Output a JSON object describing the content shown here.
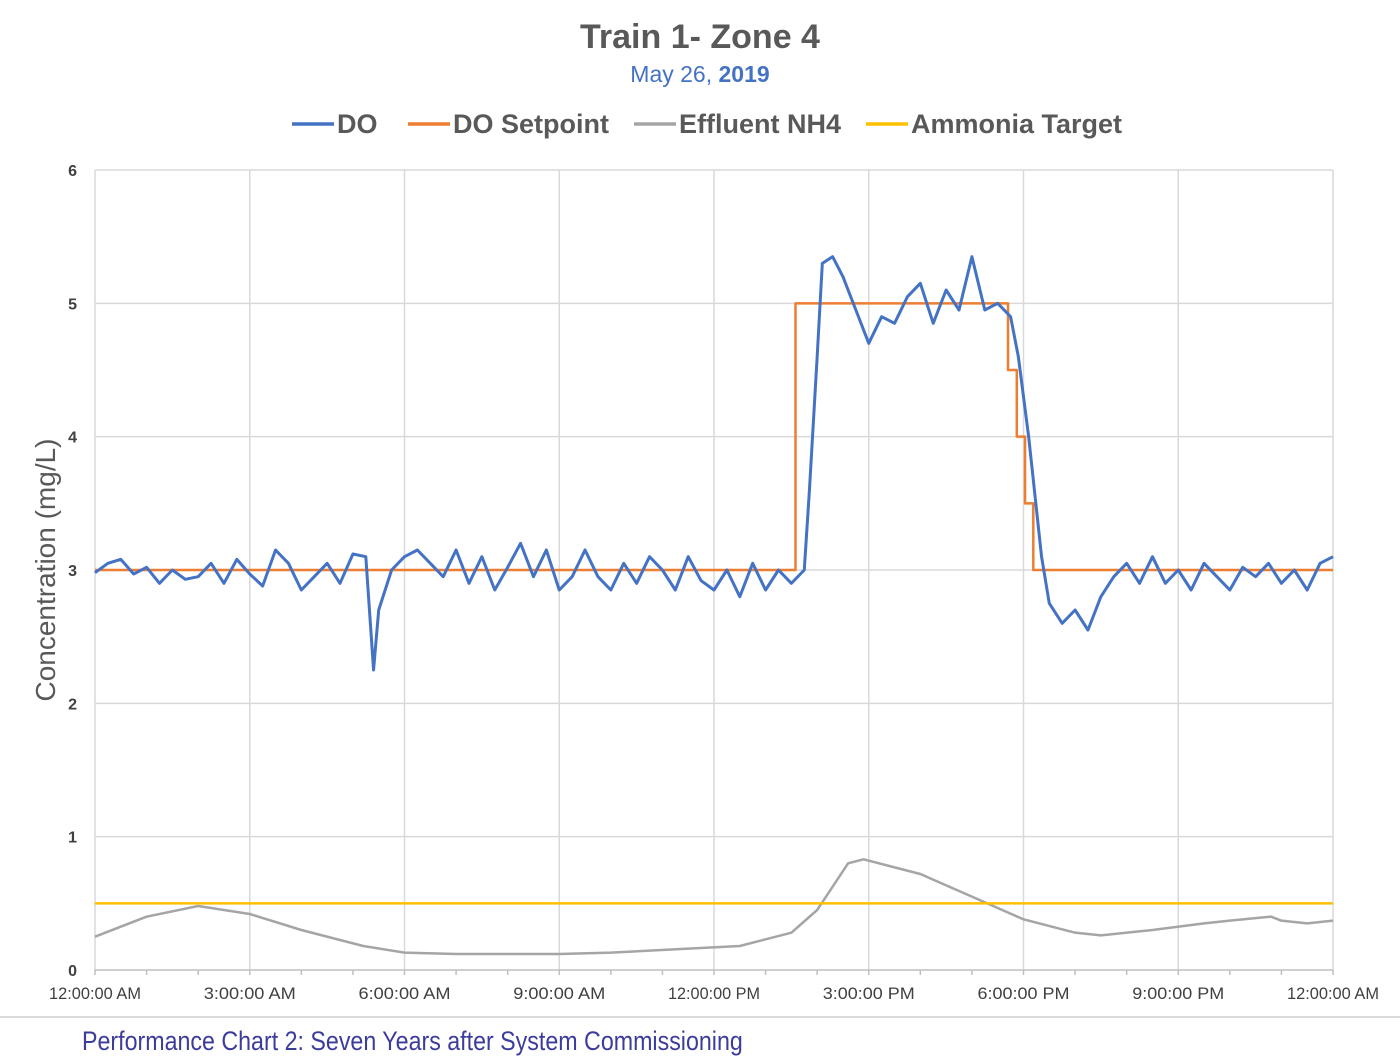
{
  "chart_data": {
    "type": "line",
    "title": "Train 1- Zone 4",
    "subtitle_prefix": "May 26, ",
    "subtitle_year": "2019",
    "xlabel": "",
    "ylabel": "Concentration (mg/L)",
    "x_units": "hours since 12:00:00 AM",
    "xlim": [
      0,
      24
    ],
    "ylim": [
      0,
      6
    ],
    "yticks": [
      0,
      1,
      2,
      3,
      4,
      5,
      6
    ],
    "xticks": [
      {
        "value": 0,
        "label": "12:00:00 AM"
      },
      {
        "value": 3,
        "label": "3:00:00 AM"
      },
      {
        "value": 6,
        "label": "6:00:00 AM"
      },
      {
        "value": 9,
        "label": "9:00:00 AM"
      },
      {
        "value": 12,
        "label": "12:00:00 PM"
      },
      {
        "value": 15,
        "label": "3:00:00 PM"
      },
      {
        "value": 18,
        "label": "6:00:00 PM"
      },
      {
        "value": 21,
        "label": "9:00:00 PM"
      },
      {
        "value": 24,
        "label": "12:00:00 AM"
      }
    ],
    "grid": true,
    "legend_position": "top",
    "series": [
      {
        "name": "DO",
        "color": "#4472C4",
        "x": [
          0,
          0.25,
          0.5,
          0.75,
          1,
          1.25,
          1.5,
          1.75,
          2,
          2.25,
          2.5,
          2.75,
          3,
          3.25,
          3.5,
          3.75,
          4,
          4.25,
          4.5,
          4.75,
          5,
          5.25,
          5.4,
          5.5,
          5.75,
          6,
          6.25,
          6.5,
          6.75,
          7,
          7.25,
          7.5,
          7.75,
          8,
          8.25,
          8.5,
          8.75,
          9,
          9.25,
          9.5,
          9.75,
          10,
          10.25,
          10.5,
          10.75,
          11,
          11.25,
          11.5,
          11.75,
          12,
          12.25,
          12.5,
          12.75,
          13,
          13.25,
          13.5,
          13.75,
          13.85,
          14,
          14.1,
          14.3,
          14.5,
          14.75,
          15,
          15.25,
          15.5,
          15.75,
          16,
          16.25,
          16.5,
          16.75,
          17,
          17.25,
          17.5,
          17.75,
          17.9,
          18.1,
          18.35,
          18.5,
          18.75,
          19,
          19.25,
          19.5,
          19.75,
          20,
          20.25,
          20.5,
          20.75,
          21,
          21.25,
          21.5,
          21.75,
          22,
          22.25,
          22.5,
          22.75,
          23,
          23.25,
          23.5,
          23.75,
          24
        ],
        "y": [
          2.98,
          3.05,
          3.08,
          2.97,
          3.02,
          2.9,
          3.0,
          2.93,
          2.95,
          3.05,
          2.9,
          3.08,
          2.97,
          2.88,
          3.15,
          3.05,
          2.85,
          2.95,
          3.05,
          2.9,
          3.12,
          3.1,
          2.25,
          2.7,
          3.0,
          3.1,
          3.15,
          3.05,
          2.95,
          3.15,
          2.9,
          3.1,
          2.85,
          3.02,
          3.2,
          2.95,
          3.15,
          2.85,
          2.95,
          3.15,
          2.95,
          2.85,
          3.05,
          2.9,
          3.1,
          3.0,
          2.85,
          3.1,
          2.92,
          2.85,
          3.0,
          2.8,
          3.05,
          2.85,
          3.0,
          2.9,
          3.0,
          3.6,
          4.6,
          5.3,
          5.35,
          5.2,
          4.95,
          4.7,
          4.9,
          4.85,
          5.05,
          5.15,
          4.85,
          5.1,
          4.95,
          5.35,
          4.95,
          5.0,
          4.9,
          4.6,
          4.0,
          3.1,
          2.75,
          2.6,
          2.7,
          2.55,
          2.8,
          2.95,
          3.05,
          2.9,
          3.1,
          2.9,
          3.0,
          2.85,
          3.05,
          2.95,
          2.85,
          3.02,
          2.95,
          3.05,
          2.9,
          3.0,
          2.85,
          3.05,
          3.1
        ]
      },
      {
        "name": "DO Setpoint",
        "color": "#ED7D31",
        "step": true,
        "x": [
          0,
          13.58,
          17.7,
          17.87,
          18.03,
          18.19,
          24
        ],
        "y": [
          3,
          5,
          4.5,
          4,
          3.5,
          3,
          3
        ]
      },
      {
        "name": "Effluent NH4",
        "color": "#A5A5A5",
        "x": [
          0,
          1,
          2,
          3,
          4,
          5.2,
          6,
          7,
          9,
          10,
          11.5,
          12.5,
          13.5,
          14,
          14.6,
          14.9,
          16,
          17,
          18,
          19,
          19.5,
          20.5,
          21.5,
          22,
          22.8,
          23,
          23.5,
          24
        ],
        "y": [
          0.25,
          0.4,
          0.48,
          0.42,
          0.3,
          0.18,
          0.13,
          0.12,
          0.12,
          0.13,
          0.16,
          0.18,
          0.28,
          0.45,
          0.8,
          0.83,
          0.72,
          0.55,
          0.38,
          0.28,
          0.26,
          0.3,
          0.35,
          0.37,
          0.4,
          0.37,
          0.35,
          0.37
        ]
      },
      {
        "name": "Ammonia Target",
        "color": "#FFC000",
        "x": [
          0,
          24
        ],
        "y": [
          0.5,
          0.5
        ]
      }
    ]
  },
  "caption": "Performance Chart 2: Seven Years after System Commissioning"
}
